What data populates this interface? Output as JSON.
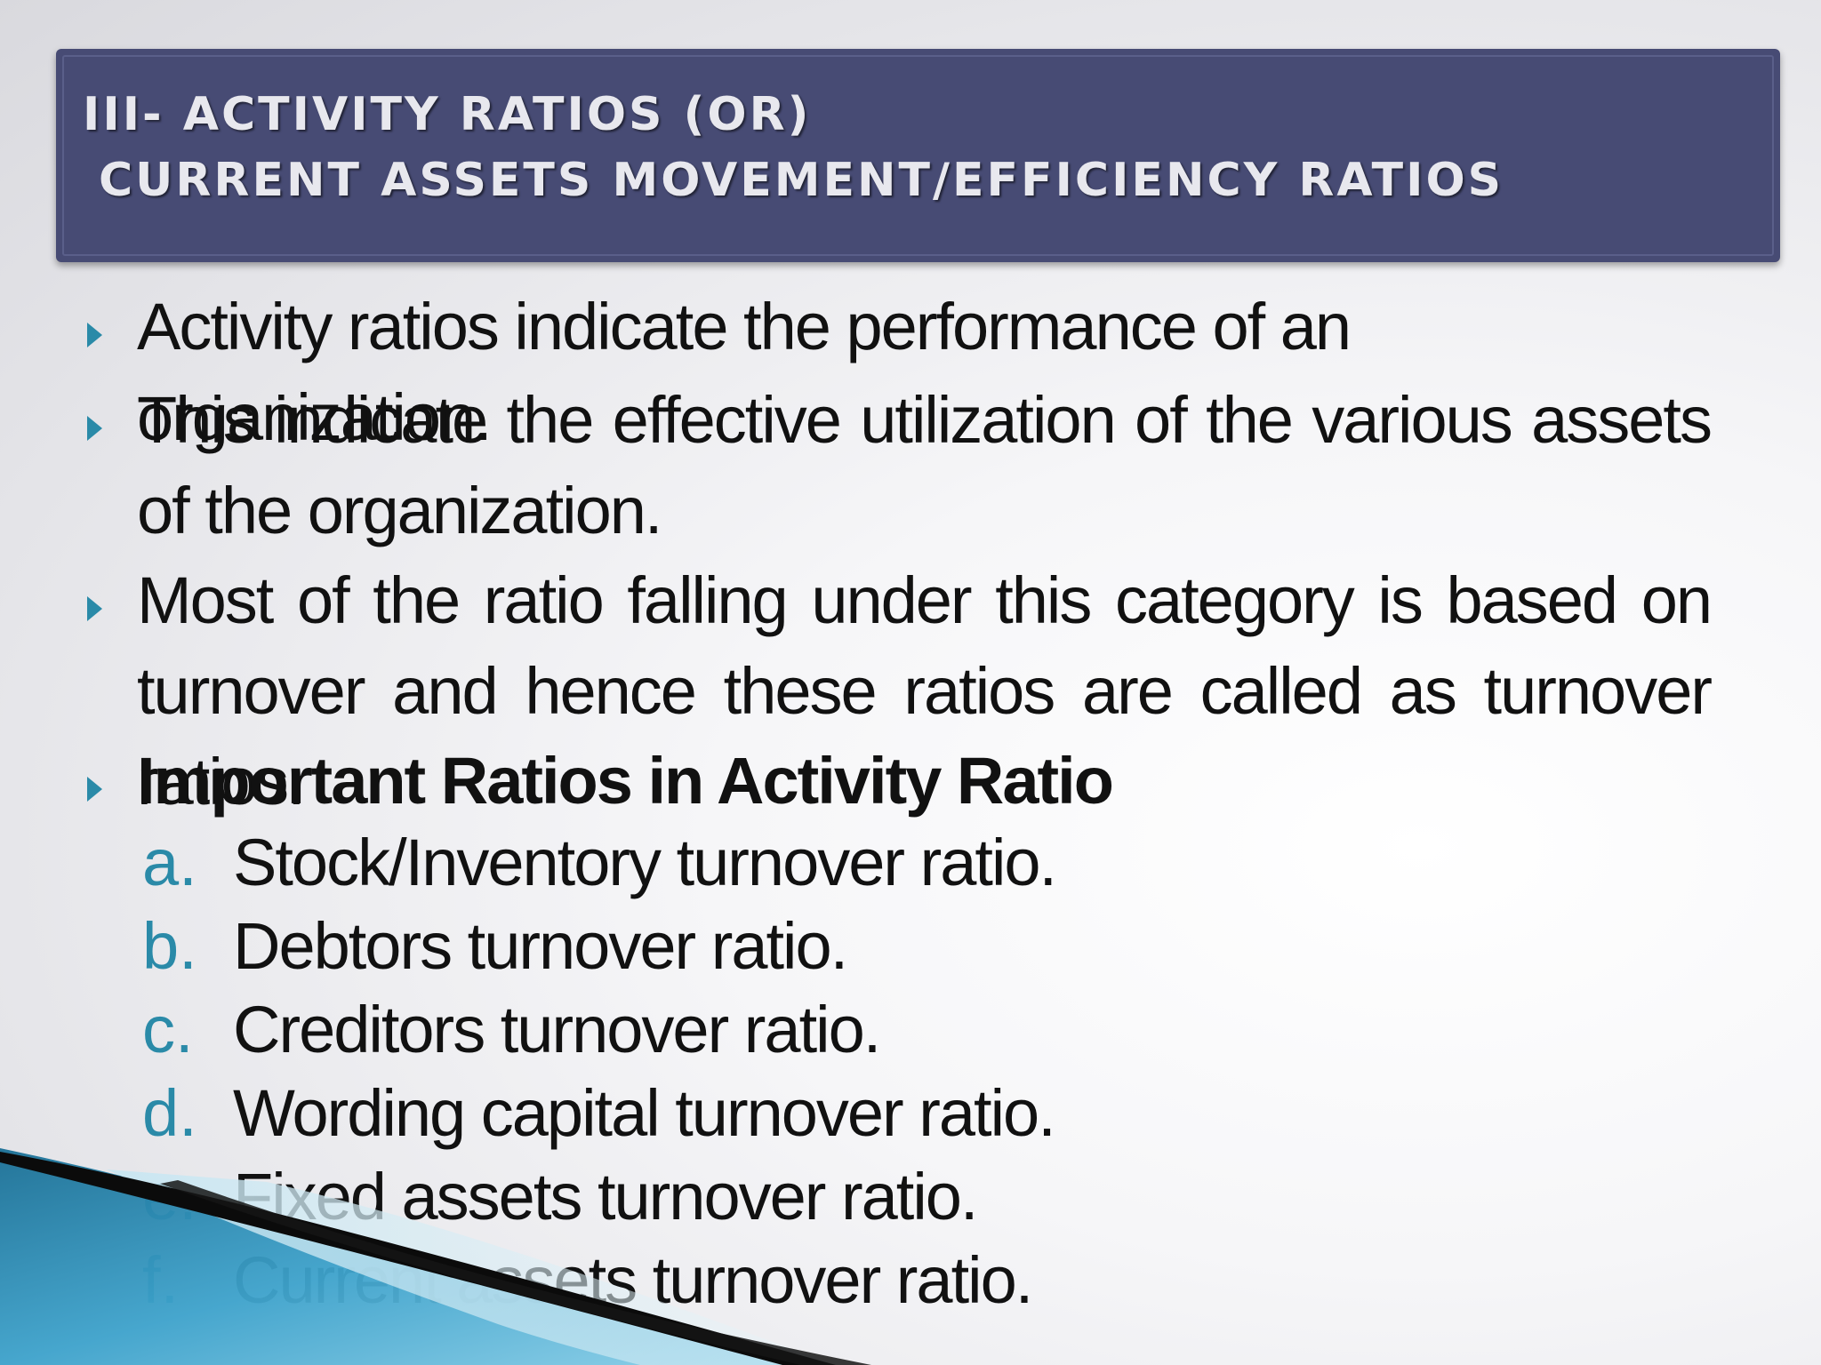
{
  "title": {
    "line1": "III- ACTIVITY RATIOS (OR)",
    "line2": "CURRENT ASSETS MOVEMENT/EFFICIENCY RATIOS"
  },
  "bullets": [
    {
      "text": "Activity ratios indicate the performance of an organization."
    },
    {
      "text": "This indicate the effective utilization of the various assets of the organization."
    },
    {
      "text": "Most of the ratio falling under this category is based on turnover and hence these ratios are called as turnover ratios."
    },
    {
      "text": "Important Ratios in Activity Ratio"
    }
  ],
  "sub_items": [
    {
      "letter": "a.",
      "text": "Stock/Inventory turnover ratio."
    },
    {
      "letter": "b.",
      "text": "Debtors turnover ratio."
    },
    {
      "letter": "c.",
      "text": "Creditors turnover ratio."
    },
    {
      "letter": "d.",
      "text": "Wording capital turnover ratio."
    },
    {
      "letter": "e.",
      "text": "Fixed assets turnover ratio."
    },
    {
      "letter": "f.",
      "text": "Current assets turnover ratio."
    }
  ],
  "colors": {
    "title_bar": "#474b74",
    "title_text": "#e8e8ee",
    "accent": "#2a8aa8",
    "body_text": "#111111"
  }
}
